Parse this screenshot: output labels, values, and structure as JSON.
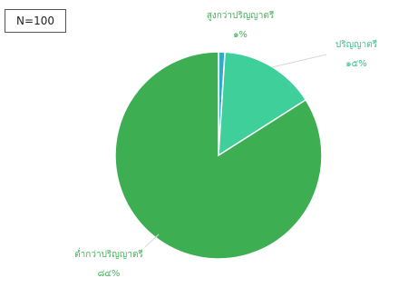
{
  "chart_data": {
    "type": "pie",
    "badge": "N=100",
    "slices": [
      {
        "label": "สูงกว่าปริญญาตรี",
        "value_label": "๑%",
        "value": 1,
        "color": "#35a9c9",
        "text_color": "#48b05a"
      },
      {
        "label": "ปริญญาตรี",
        "value_label": "๑๕%",
        "value": 15,
        "color": "#3fcf9b",
        "text_color": "#3fbf8f"
      },
      {
        "label": "ต่ำกว่าปริญญาตรี",
        "value_label": "๘๔%",
        "value": 84,
        "color": "#3daf52",
        "text_color": "#48b05a"
      }
    ],
    "start": "12 o'clock",
    "direction": "clockwise"
  }
}
